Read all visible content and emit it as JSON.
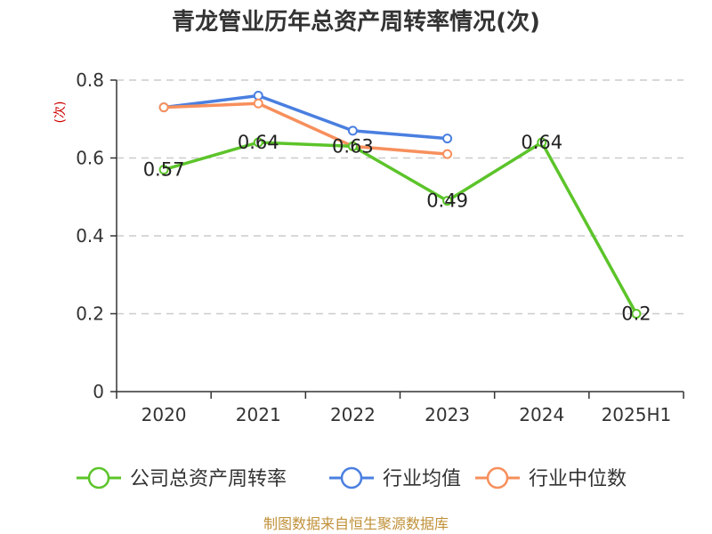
{
  "chart_data": {
    "type": "line",
    "title": "青龙管业历年总资产周转率情况(次)",
    "ylabel": "(次)",
    "categories": [
      "2020",
      "2021",
      "2022",
      "2023",
      "2024",
      "2025H1"
    ],
    "ylim": [
      0,
      0.8
    ],
    "yticks": [
      "0",
      "0.2",
      "0.4",
      "0.6",
      "0.8"
    ],
    "grid": true,
    "legend_position": "bottom",
    "series": [
      {
        "name": "公司总资产周转率",
        "color": "#5cc42a",
        "values": [
          0.57,
          0.64,
          0.63,
          0.49,
          0.64,
          0.2
        ],
        "labels": [
          "0.57",
          "0.64",
          "0.63",
          "0.49",
          "0.64",
          "0.2"
        ]
      },
      {
        "name": "行业均值",
        "color": "#4a7fe0",
        "values": [
          0.73,
          0.76,
          0.67,
          0.65,
          null,
          null
        ]
      },
      {
        "name": "行业中位数",
        "color": "#f78f5c",
        "values": [
          0.73,
          0.74,
          0.63,
          0.61,
          null,
          null
        ]
      }
    ]
  },
  "footer": {
    "source": "制图数据来自恒生聚源数据库"
  }
}
